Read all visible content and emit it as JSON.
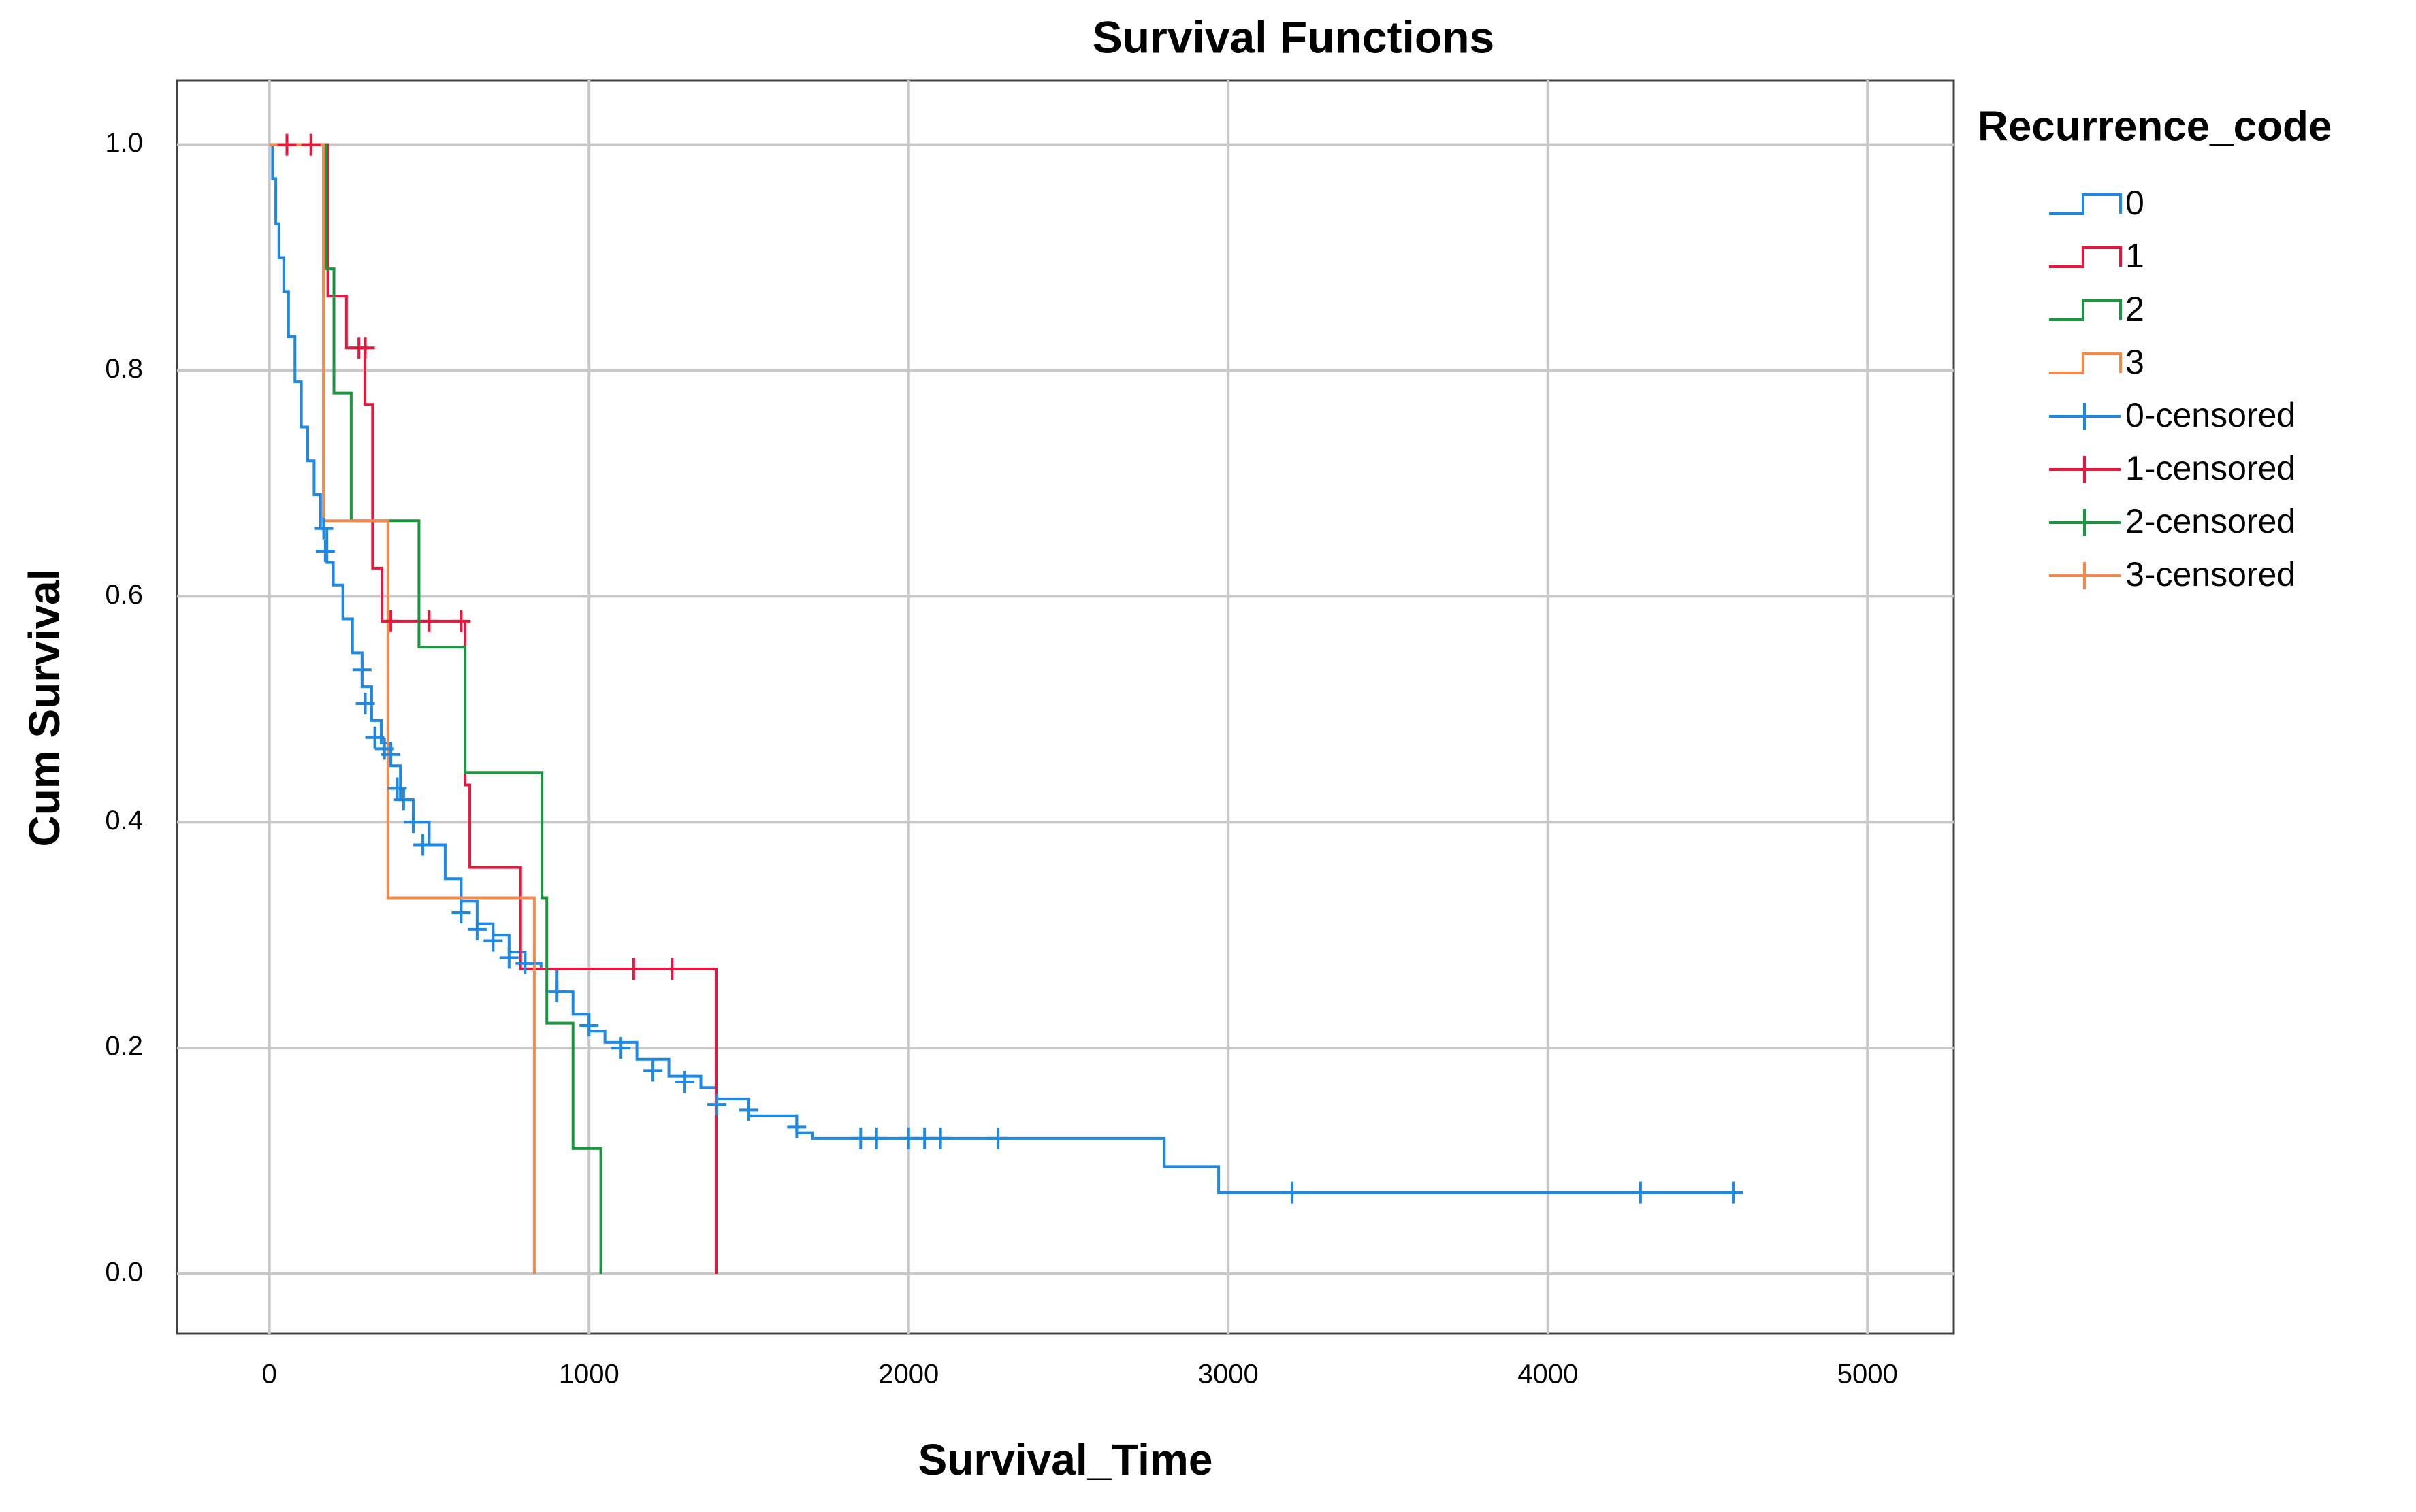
{
  "chart_data": {
    "type": "survival",
    "title": "Survival Functions",
    "x_label": "Survival_Time",
    "y_label": "Cum Survival",
    "legend_title": "Recurrence_code",
    "legend_position": "right",
    "grid": true,
    "xlim": [
      -289,
      5270
    ],
    "ylim": [
      -0.053,
      1.057
    ],
    "xticks": [
      0,
      1000,
      2000,
      3000,
      4000,
      5000
    ],
    "yticks": [
      {
        "value": 0,
        "label": "0.0"
      },
      0.2,
      0.4,
      0.6,
      0.8,
      {
        "value": 1,
        "label": "1.0"
      }
    ],
    "series": [
      {
        "name": "0",
        "color": "#1e88e5",
        "style": "step",
        "x": [
          0,
          10,
          20,
          30,
          45,
          60,
          80,
          100,
          120,
          140,
          160,
          180,
          200,
          230,
          260,
          290,
          320,
          350,
          380,
          410,
          450,
          500,
          550,
          600,
          650,
          700,
          750,
          800,
          850,
          900,
          950,
          1000,
          1050,
          1150,
          1250,
          1350,
          1400,
          1500,
          1650,
          1700,
          2800,
          2970,
          4580
        ],
        "values": [
          1,
          0.97,
          0.93,
          0.9,
          0.87,
          0.83,
          0.79,
          0.75,
          0.72,
          0.69,
          0.66,
          0.63,
          0.61,
          0.58,
          0.55,
          0.52,
          0.49,
          0.47,
          0.45,
          0.42,
          0.4,
          0.38,
          0.35,
          0.33,
          0.31,
          0.3,
          0.285,
          0.275,
          0.27,
          0.25,
          0.23,
          0.215,
          0.205,
          0.19,
          0.175,
          0.165,
          0.155,
          0.14,
          0.125,
          0.12,
          0.095,
          0.072,
          0.072
        ]
      },
      {
        "name": "1",
        "color": "#e8163c",
        "style": "step",
        "x": [
          0,
          183,
          241,
          299,
          323,
          352,
          612,
          627,
          786,
          1398
        ],
        "values": [
          1,
          0.866,
          0.82,
          0.77,
          0.625,
          0.578,
          0.433,
          0.36,
          0.27,
          0
        ]
      },
      {
        "name": "2",
        "color": "#1a9641",
        "style": "step",
        "x": [
          0,
          178,
          202,
          256,
          468,
          612,
          853,
          868,
          950,
          1037
        ],
        "values": [
          1,
          0.89,
          0.78,
          0.667,
          0.555,
          0.444,
          0.333,
          0.222,
          0.111,
          0
        ]
      },
      {
        "name": "3",
        "color": "#f4894b",
        "style": "step",
        "x": [
          0,
          169,
          371,
          829
        ],
        "values": [
          1,
          0.667,
          0.333,
          0
        ]
      },
      {
        "name": "0-censored",
        "color": "#1e88e5",
        "style": "plus",
        "x": [
          170,
          175,
          290,
          300,
          330,
          360,
          380,
          400,
          420,
          450,
          480,
          600,
          650,
          700,
          750,
          800,
          900,
          1000,
          1100,
          1200,
          1300,
          1400,
          1500,
          1650,
          1850,
          1900,
          2000,
          2050,
          2100,
          2280,
          3200,
          4290,
          4580
        ],
        "values": [
          0.66,
          0.64,
          0.535,
          0.505,
          0.475,
          0.465,
          0.46,
          0.43,
          0.42,
          0.4,
          0.38,
          0.32,
          0.305,
          0.295,
          0.28,
          0.275,
          0.25,
          0.22,
          0.2,
          0.18,
          0.17,
          0.15,
          0.145,
          0.13,
          0.12,
          0.12,
          0.12,
          0.12,
          0.12,
          0.12,
          0.072,
          0.072,
          0.072
        ]
      },
      {
        "name": "1-censored",
        "color": "#e8163c",
        "style": "plus",
        "x": [
          55,
          130,
          280,
          300,
          380,
          500,
          600,
          1140,
          1260
        ],
        "values": [
          1,
          1,
          0.82,
          0.82,
          0.578,
          0.578,
          0.578,
          0.27,
          0.27
        ]
      },
      {
        "name": "2-censored",
        "color": "#1a9641",
        "style": "plus",
        "x": [],
        "values": []
      },
      {
        "name": "3-censored",
        "color": "#f4894b",
        "style": "plus",
        "x": [],
        "values": []
      }
    ]
  }
}
